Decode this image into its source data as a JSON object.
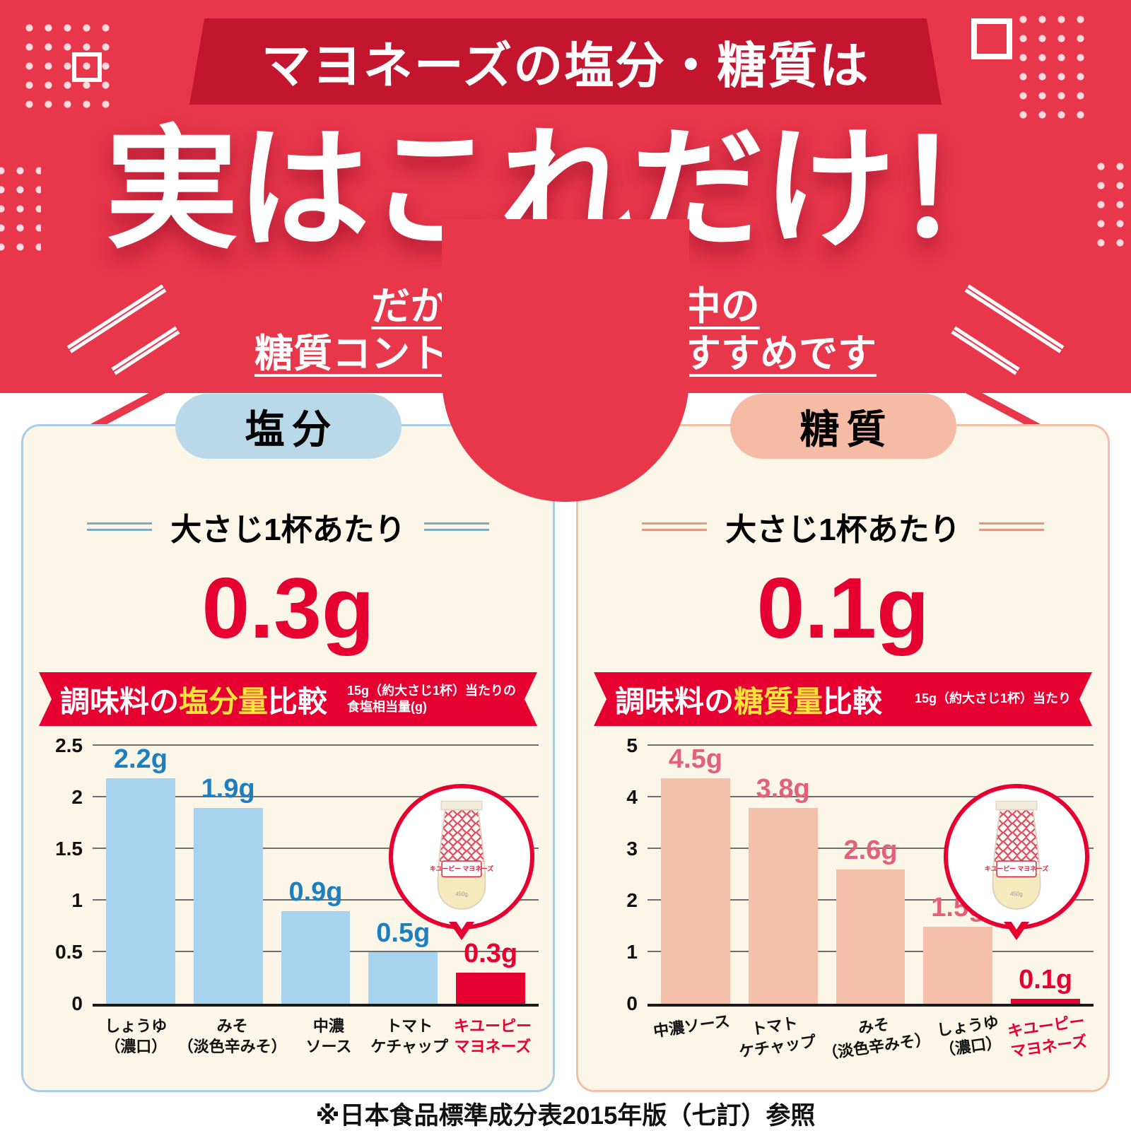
{
  "colors": {
    "red": "#e8364b",
    "dark_red": "#c3152d",
    "accent_red": "#e60032",
    "yellow": "#ffe33c",
    "cream": "#fbf6e7",
    "text_dark": "#1a1a1a",
    "salt_badge": "#b9d8e8",
    "salt_border": "#a9cde2",
    "salt_line": "#7fa9c2",
    "sugar_badge": "#f6bba4",
    "sugar_border": "#f2c0a9",
    "sugar_line": "#e59a80"
  },
  "header": {
    "ribbon": "マヨネーズの塩分・糖質は",
    "title": "実はこれだけ！",
    "subtitle_line1": "だからダイエット中の",
    "subtitle_line2": "糖質コントロールにもおすすめです"
  },
  "salt_panel": {
    "badge": "塩分",
    "serving_label": "大さじ1杯あたり",
    "amount": "0.3g",
    "banner": {
      "pre": "調味料の",
      "highlight": "塩分量",
      "post": "比較",
      "note_line1": "15g（約大さじ1杯）当たりの",
      "note_line2": "食塩相当量(g)"
    }
  },
  "sugar_panel": {
    "badge": "糖質",
    "serving_label": "大さじ1杯あたり",
    "amount": "0.1g",
    "banner": {
      "pre": "調味料の",
      "highlight": "糖質量",
      "post": "比較",
      "note_line1": "15g（約大さじ1杯）当たり",
      "note_line2": ""
    }
  },
  "bottle": {
    "brand": "キユーピー マヨネーズ",
    "size": "450g"
  },
  "chart_data": [
    {
      "type": "bar",
      "title": "調味料の塩分量比較",
      "unit_note": "15g（約大さじ1杯）当たりの食塩相当量(g)",
      "categories": [
        [
          "しょうゆ",
          "（濃口）"
        ],
        [
          "みそ",
          "（淡色辛みそ）"
        ],
        [
          "中濃",
          "ソース"
        ],
        [
          "トマト",
          "ケチャップ"
        ],
        [
          "キユーピー",
          "マヨネーズ"
        ]
      ],
      "values": [
        2.2,
        1.9,
        0.9,
        0.5,
        0.3
      ],
      "value_labels": [
        "2.2g",
        "1.9g",
        "0.9g",
        "0.5g",
        "0.3g"
      ],
      "ylim": [
        0,
        2.5
      ],
      "ytick_values": [
        0,
        0.5,
        1,
        1.5,
        2,
        2.5
      ],
      "ytick_labels": [
        "0",
        "0.5",
        "1",
        "1.5",
        "2",
        "2.5"
      ],
      "highlight_index": 4,
      "grid": true,
      "legend": "none",
      "bar_color": "#a7d3ef",
      "value_label_color": "#1e7fc0",
      "highlight_bar_color": "#e60032",
      "highlight_label_color": "#e60032",
      "tilt_category_labels": false
    },
    {
      "type": "bar",
      "title": "調味料の糖質量比較",
      "unit_note": "15g（約大さじ1杯）当たり",
      "categories": [
        [
          "中濃ソース"
        ],
        [
          "トマト",
          "ケチャップ"
        ],
        [
          "みそ",
          "（淡色辛みそ）"
        ],
        [
          "しょうゆ",
          "（濃口）"
        ],
        [
          "キユーピー",
          "マヨネーズ"
        ]
      ],
      "values": [
        4.5,
        3.8,
        2.6,
        1.5,
        0.1
      ],
      "value_labels": [
        "4.5g",
        "3.8g",
        "2.6g",
        "1.5g",
        "0.1g"
      ],
      "ylim": [
        0,
        5
      ],
      "ytick_values": [
        0,
        1,
        2,
        3,
        4,
        5
      ],
      "ytick_labels": [
        "0",
        "1",
        "2",
        "3",
        "4",
        "5"
      ],
      "highlight_index": 4,
      "grid": true,
      "legend": "none",
      "bar_color": "#f5c0a9",
      "value_label_color": "#e2607a",
      "highlight_bar_color": "#e60032",
      "highlight_label_color": "#e60032",
      "tilt_category_labels": true
    }
  ],
  "footer_note": "※日本食品標準成分表2015年版（七訂）参照"
}
